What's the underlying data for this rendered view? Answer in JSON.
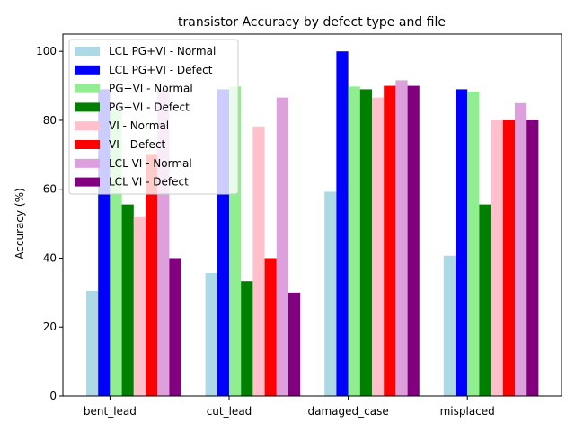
{
  "chart_data": {
    "type": "bar",
    "title": "transistor Accuracy by defect type and file",
    "xlabel": "",
    "ylabel": "Accuracy (%)",
    "ylim": [
      0,
      105
    ],
    "yticks": [
      0,
      20,
      40,
      60,
      80,
      100
    ],
    "categories": [
      "bent_lead",
      "cut_lead",
      "damaged_case",
      "misplaced"
    ],
    "legend_position": "top-left",
    "grid": false,
    "series": [
      {
        "name": "LCL PG+VI - Normal",
        "color": "#add8e6",
        "values": [
          30.5,
          35.7,
          59.3,
          40.7
        ]
      },
      {
        "name": "LCL PG+VI - Defect",
        "color": "#0000ff",
        "values": [
          89.0,
          89.0,
          100.0,
          89.0
        ]
      },
      {
        "name": "PG+VI - Normal",
        "color": "#90ee90",
        "values": [
          83.2,
          89.8,
          89.8,
          88.3
        ]
      },
      {
        "name": "PG+VI - Defect",
        "color": "#008000",
        "values": [
          55.6,
          33.3,
          89.0,
          55.6
        ]
      },
      {
        "name": "VI - Normal",
        "color": "#ffc0cb",
        "values": [
          51.9,
          78.2,
          86.6,
          80.0
        ]
      },
      {
        "name": "VI - Defect",
        "color": "#ff0000",
        "values": [
          70.0,
          40.0,
          90.0,
          80.0
        ]
      },
      {
        "name": "LCL VI - Normal",
        "color": "#dda0dd",
        "values": [
          89.0,
          86.6,
          91.6,
          85.0
        ]
      },
      {
        "name": "LCL VI - Defect",
        "color": "#800080",
        "values": [
          40.0,
          30.0,
          90.0,
          80.0
        ]
      }
    ]
  }
}
